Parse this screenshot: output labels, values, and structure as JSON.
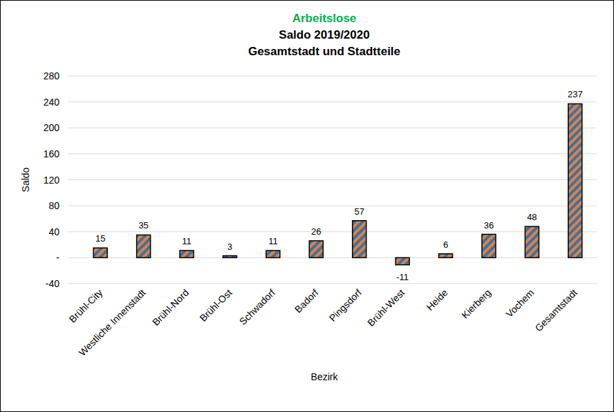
{
  "chart_data": {
    "type": "bar",
    "title": "Arbeitslose",
    "subtitle": [
      "Saldo 2019/2020",
      "Gesamtstadt und Stadtteile"
    ],
    "x_label": "Bezirk",
    "y_label": "Saldo",
    "categories": [
      "Brühl-City",
      "Westliche Innenstadt",
      "Brühl-Nord",
      "Brühl-Ost",
      "Schwadorf",
      "Badorf",
      "Pingsdorf",
      "Brühl-West",
      "Heide",
      "Kierberg",
      "Vochem",
      "Gesamtstadt"
    ],
    "values": [
      15,
      35,
      11,
      3,
      11,
      26,
      57,
      -11,
      6,
      36,
      48,
      237
    ],
    "color": "#ed7d31",
    "ylim": [
      -40,
      280
    ],
    "yticks": [
      -40,
      {
        "value": 0,
        "label": "-"
      },
      40,
      80,
      120,
      160,
      200,
      240,
      280
    ],
    "grid": true,
    "data_labels": true
  }
}
